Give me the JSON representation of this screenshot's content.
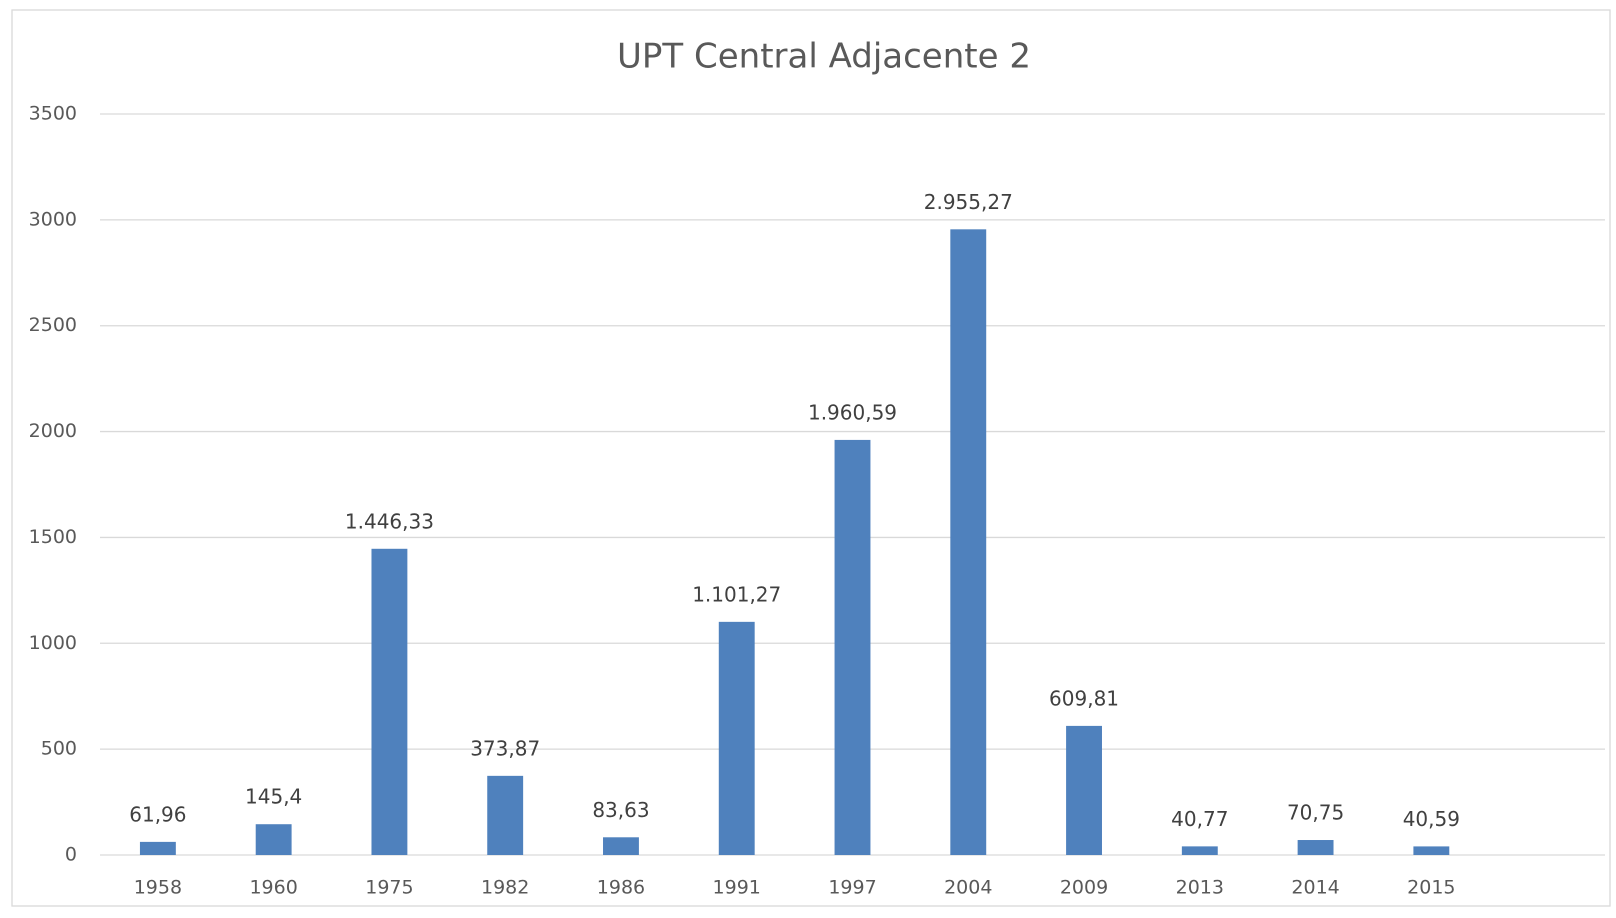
{
  "chart_data": {
    "type": "bar",
    "title": "UPT Central Adjacente 2",
    "categories": [
      "1958",
      "1960",
      "1975",
      "1982",
      "1986",
      "1991",
      "1997",
      "2004",
      "2009",
      "2013",
      "2014",
      "2015",
      null
    ],
    "values": [
      61.96,
      145.4,
      1446.33,
      373.87,
      83.63,
      1101.27,
      1960.59,
      2955.27,
      609.81,
      40.77,
      70.75,
      40.59,
      null
    ],
    "value_labels": [
      "61,96",
      "145,4",
      "1.446,33",
      "373,87",
      "83,63",
      "1.101,27",
      "1.960,59",
      "2.955,27",
      "609,81",
      "40,77",
      "70,75",
      "40,59",
      null
    ],
    "color": "#4f81bd",
    "ylim": [
      0,
      3500
    ],
    "yticks": [
      0,
      500,
      1000,
      1500,
      2000,
      2500,
      3000,
      3500
    ],
    "grid": true
  }
}
